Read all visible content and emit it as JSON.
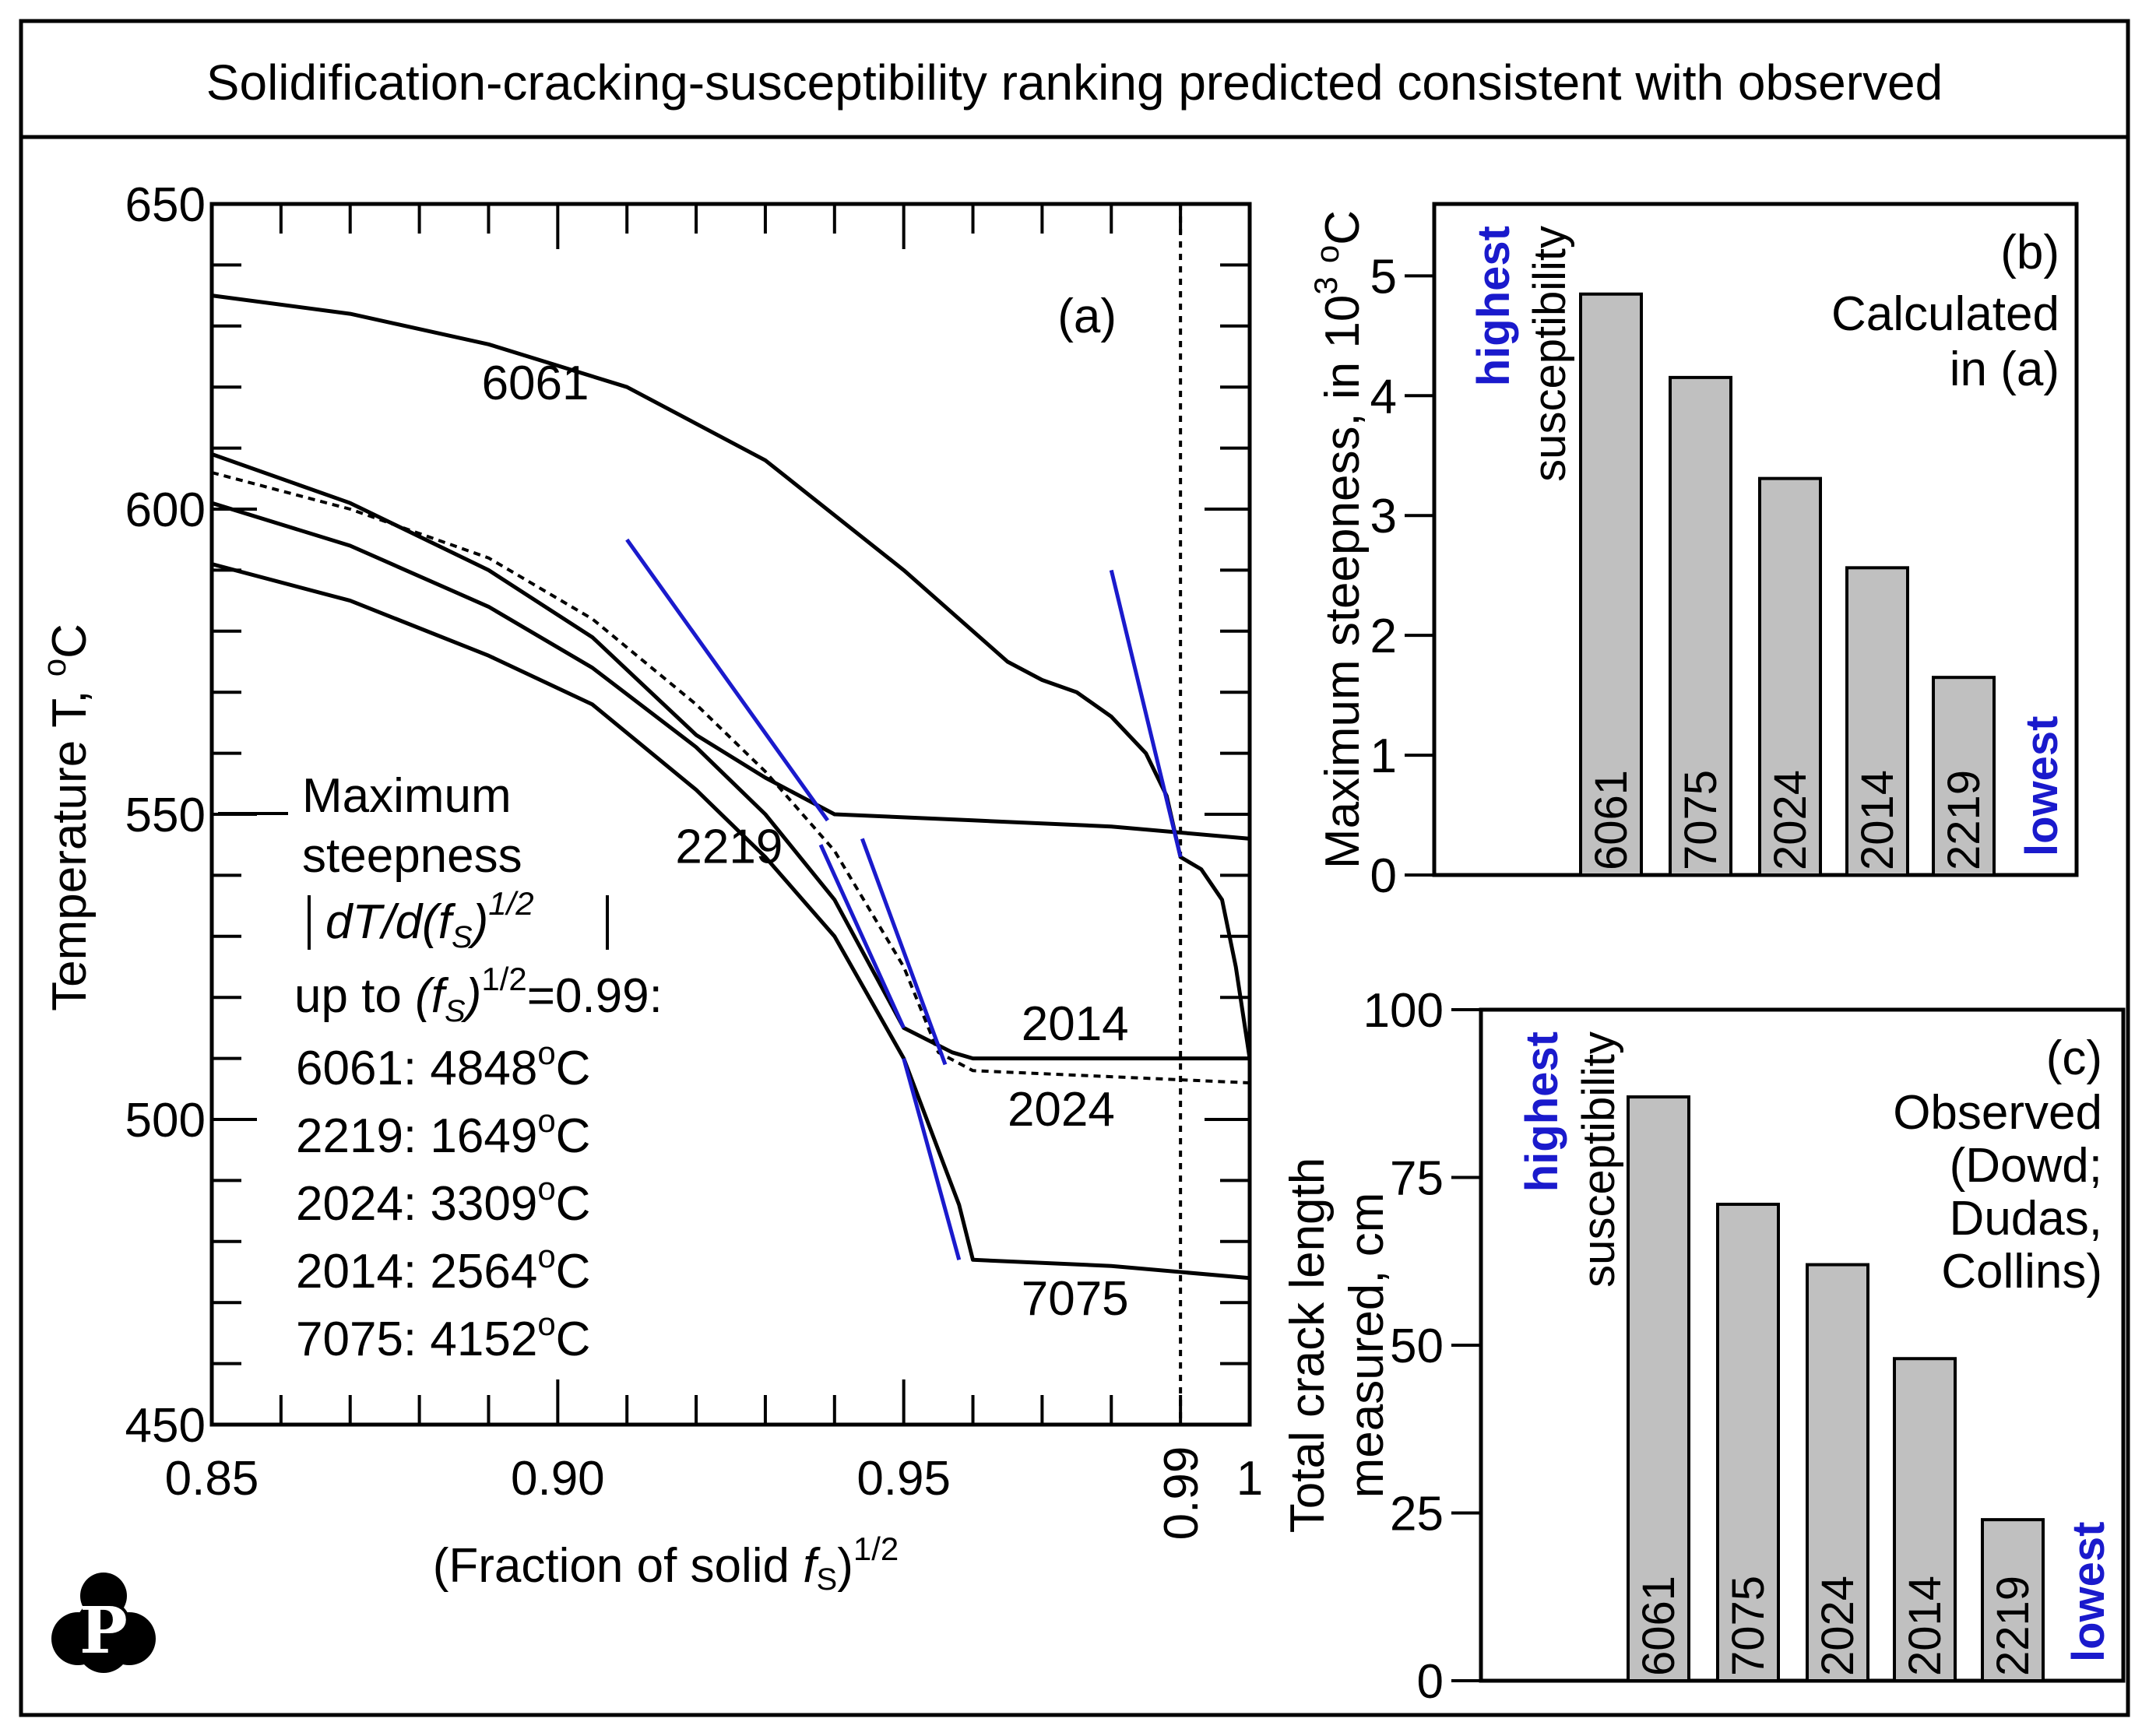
{
  "title": "Solidification-cracking-susceptibility ranking predicted consistent with observed",
  "colors": {
    "steep": "#1a1acc",
    "bar": "#c0c0c0",
    "ink": "#000000"
  },
  "logo": {
    "icon": "p-logo-icon",
    "letter": "P"
  },
  "chart_data": [
    {
      "id": "a",
      "type": "line",
      "panel_label": "(a)",
      "xlabel_prefix": "(Fraction of solid ",
      "xlabel_var": "f",
      "xlabel_sub": "S",
      "xlabel_suffix": ")",
      "xlabel_sup": "1/2",
      "ylabel_text": "Temperature T, ",
      "ylabel_unit_sup": "o",
      "ylabel_unit": "C",
      "xlim": [
        0.85,
        1.0
      ],
      "ylim": [
        450,
        650
      ],
      "x_ticks": [
        {
          "value": 0.85,
          "label": "0.85"
        },
        {
          "value": 0.9,
          "label": "0.90"
        },
        {
          "value": 0.95,
          "label": "0.95"
        },
        {
          "value": 0.99,
          "label": "0.99"
        },
        {
          "value": 1.0,
          "label": "1"
        }
      ],
      "y_ticks": [
        {
          "value": 650,
          "label": "650"
        },
        {
          "value": 600,
          "label": "600"
        },
        {
          "value": 550,
          "label": "550"
        },
        {
          "value": 500,
          "label": "500"
        },
        {
          "value": 450,
          "label": "450"
        }
      ],
      "reference_x": 0.99,
      "series": [
        {
          "name": "6061",
          "style": "solid",
          "label_at": [
            0.889,
            618
          ],
          "points": [
            [
              0.85,
              635
            ],
            [
              0.87,
              632
            ],
            [
              0.89,
              627
            ],
            [
              0.91,
              620
            ],
            [
              0.93,
              608
            ],
            [
              0.95,
              590
            ],
            [
              0.965,
              575
            ],
            [
              0.97,
              572
            ],
            [
              0.975,
              570
            ],
            [
              0.98,
              566
            ],
            [
              0.985,
              560
            ],
            [
              0.988,
              553
            ],
            [
              0.99,
              543
            ],
            [
              0.993,
              541
            ],
            [
              0.996,
              536
            ],
            [
              0.998,
              525
            ],
            [
              1.0,
              510
            ]
          ]
        },
        {
          "name": "2219",
          "style": "solid",
          "label_at": [
            0.917,
            542
          ],
          "points": [
            [
              0.85,
              609
            ],
            [
              0.87,
              601
            ],
            [
              0.89,
              590
            ],
            [
              0.905,
              579
            ],
            [
              0.92,
              563
            ],
            [
              0.93,
              556
            ],
            [
              0.94,
              550
            ],
            [
              0.96,
              549
            ],
            [
              0.98,
              548
            ],
            [
              0.99,
              547
            ],
            [
              1.0,
              546
            ]
          ]
        },
        {
          "name": "2014",
          "style": "solid",
          "label_at": [
            0.967,
            513
          ],
          "points": [
            [
              0.85,
              601
            ],
            [
              0.87,
              594
            ],
            [
              0.89,
              584
            ],
            [
              0.905,
              574
            ],
            [
              0.92,
              561
            ],
            [
              0.93,
              550
            ],
            [
              0.94,
              536
            ],
            [
              0.95,
              515
            ],
            [
              0.957,
              511
            ],
            [
              0.96,
              510
            ],
            [
              0.98,
              510
            ],
            [
              1.0,
              510
            ]
          ]
        },
        {
          "name": "2024",
          "style": "dashed",
          "label_at": [
            0.965,
            499
          ],
          "points": [
            [
              0.85,
              606
            ],
            [
              0.87,
              600
            ],
            [
              0.89,
              592
            ],
            [
              0.905,
              582
            ],
            [
              0.92,
              568
            ],
            [
              0.93,
              557
            ],
            [
              0.94,
              544
            ],
            [
              0.95,
              525
            ],
            [
              0.955,
              511
            ],
            [
              0.96,
              508
            ],
            [
              0.98,
              507
            ],
            [
              1.0,
              506
            ]
          ]
        },
        {
          "name": "7075",
          "style": "solid",
          "label_at": [
            0.967,
            468
          ],
          "points": [
            [
              0.85,
              591
            ],
            [
              0.87,
              585
            ],
            [
              0.89,
              576
            ],
            [
              0.905,
              568
            ],
            [
              0.92,
              554
            ],
            [
              0.93,
              543
            ],
            [
              0.94,
              530
            ],
            [
              0.95,
              510
            ],
            [
              0.955,
              495
            ],
            [
              0.958,
              486
            ],
            [
              0.96,
              477
            ],
            [
              0.98,
              476
            ],
            [
              1.0,
              474
            ]
          ]
        }
      ],
      "tangents": [
        {
          "alloy": "2219",
          "from": [
            0.91,
            595
          ],
          "to": [
            0.939,
            549
          ]
        },
        {
          "alloy": "2024",
          "from": [
            0.944,
            546
          ],
          "to": [
            0.956,
            509
          ]
        },
        {
          "alloy": "2014",
          "from": [
            0.938,
            545
          ],
          "to": [
            0.95,
            515
          ]
        },
        {
          "alloy": "7075",
          "from": [
            0.95,
            510
          ],
          "to": [
            0.958,
            477
          ]
        },
        {
          "alloy": "6061",
          "from": [
            0.98,
            590
          ],
          "to": [
            0.99,
            543
          ]
        }
      ],
      "annotation": {
        "line1": "Maximum",
        "line2": "steepness",
        "formula_main": "dT/d(f",
        "formula_sub": "S",
        "formula_close": ")",
        "formula_sup": "1/2",
        "upto_prefix": "up to ",
        "upto_var_open": "(f",
        "upto_sub": "S",
        "upto_var_close": ")",
        "upto_sup": "1/2",
        "upto_suffix": "=0.99:",
        "deg": "o",
        "unit": "C",
        "values": [
          {
            "alloy": "6061",
            "text": "6061: 4848"
          },
          {
            "alloy": "2219",
            "text": "2219: 1649"
          },
          {
            "alloy": "2024",
            "text": "2024: 3309"
          },
          {
            "alloy": "2014",
            "text": "2014: 2564"
          },
          {
            "alloy": "7075",
            "text": "7075: 4152"
          }
        ]
      }
    },
    {
      "id": "b",
      "type": "bar",
      "panel_label": "(b)",
      "caption": [
        "Calculated",
        "in (a)"
      ],
      "ylabel_text": "Maximum steepness, in 10",
      "ylabel_exp": "3",
      "ylabel_unit_sup": "o",
      "ylabel_unit": "C",
      "ylim": [
        0,
        5.6
      ],
      "y_ticks": [
        {
          "value": 0,
          "label": "0"
        },
        {
          "value": 1,
          "label": "1"
        },
        {
          "value": 2,
          "label": "2"
        },
        {
          "value": 3,
          "label": "3"
        },
        {
          "value": 4,
          "label": "4"
        },
        {
          "value": 5,
          "label": "5"
        }
      ],
      "categories": [
        "6061",
        "7075",
        "2024",
        "2014",
        "2219"
      ],
      "values": [
        4.848,
        4.152,
        3.309,
        2.564,
        1.649
      ],
      "highest_label": "highest",
      "susceptibility_label": "susceptibility",
      "lowest_label": "lowest"
    },
    {
      "id": "c",
      "type": "bar",
      "panel_label": "(c)",
      "caption": [
        "Observed",
        "(Dowd;",
        "Dudas,",
        "Collins)"
      ],
      "ylabel_line1": "Total crack length",
      "ylabel_line2": "measured, cm",
      "ylim": [
        0,
        100
      ],
      "y_ticks": [
        {
          "value": 0,
          "label": "0"
        },
        {
          "value": 25,
          "label": "25"
        },
        {
          "value": 50,
          "label": "50"
        },
        {
          "value": 75,
          "label": "75"
        },
        {
          "value": 100,
          "label": "100"
        }
      ],
      "categories": [
        "6061",
        "7075",
        "2024",
        "2014",
        "2219"
      ],
      "values": [
        87,
        71,
        62,
        48,
        24
      ],
      "highest_label": "highest",
      "susceptibility_label": "susceptibility",
      "lowest_label": "lowest"
    }
  ]
}
